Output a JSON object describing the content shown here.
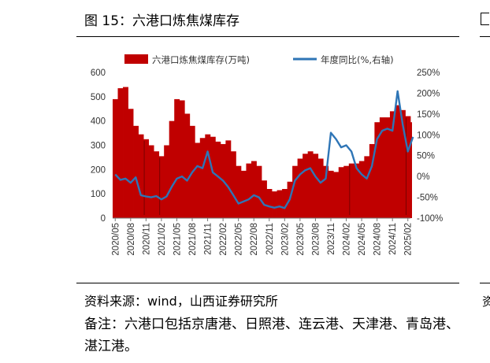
{
  "figure": {
    "title": "图 15：六港口炼焦煤库存",
    "source": "资料来源：wind，山西证券研究所",
    "note": "备注：六港口包括京唐港、日照港、连云港、天津港、青岛港、湛江港。",
    "right_stub_note": "资"
  },
  "chart_data": {
    "type": "bar+line",
    "legend_position": "top",
    "grid": false,
    "x_tick_labels": [
      "2020/05",
      "2020/08",
      "2020/11",
      "2021/02",
      "2021/05",
      "2021/08",
      "2021/11",
      "2022/02",
      "2022/05",
      "2022/08",
      "2022/11",
      "2023/02",
      "2023/05",
      "2023/08",
      "2023/11",
      "2024/02",
      "2024/05",
      "2024/08",
      "2024/11",
      "2025/02"
    ],
    "y_left": {
      "ticks": [
        "0",
        "100",
        "200",
        "300",
        "400",
        "500",
        "600"
      ],
      "range": [
        0,
        600
      ]
    },
    "y_right": {
      "ticks": [
        "-100%",
        "-50%",
        "0%",
        "50%",
        "100%",
        "150%",
        "200%",
        "250%"
      ],
      "range": [
        -100,
        250
      ]
    },
    "series": [
      {
        "name": "六港口炼焦煤库存(万吨)",
        "kind": "bar",
        "axis": "left",
        "color": "#c00000",
        "points": [
          [
            "2020/05",
            490
          ],
          [
            "2020/06",
            535
          ],
          [
            "2020/07",
            540
          ],
          [
            "2020/08",
            450
          ],
          [
            "2020/09",
            380
          ],
          [
            "2020/10",
            345
          ],
          [
            "2020/11",
            325
          ],
          [
            "2020/12",
            300
          ],
          [
            "2021/01",
            275
          ],
          [
            "2021/02",
            255
          ],
          [
            "2021/03",
            300
          ],
          [
            "2021/04",
            400
          ],
          [
            "2021/05",
            490
          ],
          [
            "2021/06",
            485
          ],
          [
            "2021/07",
            430
          ],
          [
            "2021/08",
            380
          ],
          [
            "2021/09",
            310
          ],
          [
            "2021/10",
            330
          ],
          [
            "2021/11",
            345
          ],
          [
            "2021/12",
            335
          ],
          [
            "2022/01",
            315
          ],
          [
            "2022/02",
            305
          ],
          [
            "2022/03",
            320
          ],
          [
            "2022/04",
            275
          ],
          [
            "2022/05",
            215
          ],
          [
            "2022/06",
            195
          ],
          [
            "2022/07",
            225
          ],
          [
            "2022/08",
            235
          ],
          [
            "2022/09",
            215
          ],
          [
            "2022/10",
            155
          ],
          [
            "2022/11",
            120
          ],
          [
            "2022/12",
            110
          ],
          [
            "2023/01",
            115
          ],
          [
            "2023/02",
            120
          ],
          [
            "2023/03",
            150
          ],
          [
            "2023/04",
            215
          ],
          [
            "2023/05",
            245
          ],
          [
            "2023/06",
            265
          ],
          [
            "2023/07",
            275
          ],
          [
            "2023/08",
            265
          ],
          [
            "2023/09",
            245
          ],
          [
            "2023/10",
            215
          ],
          [
            "2023/11",
            195
          ],
          [
            "2023/12",
            190
          ],
          [
            "2024/01",
            210
          ],
          [
            "2024/02",
            215
          ],
          [
            "2024/03",
            225
          ],
          [
            "2024/04",
            225
          ],
          [
            "2024/05",
            235
          ],
          [
            "2024/06",
            255
          ],
          [
            "2024/07",
            305
          ],
          [
            "2024/08",
            395
          ],
          [
            "2024/09",
            415
          ],
          [
            "2024/10",
            415
          ],
          [
            "2024/11",
            440
          ],
          [
            "2024/12",
            465
          ],
          [
            "2025/01",
            445
          ],
          [
            "2025/02",
            420
          ],
          [
            "2025/03",
            395
          ]
        ]
      },
      {
        "name": "年度同比(%,右轴)",
        "kind": "line",
        "axis": "right",
        "color": "#2e75b6",
        "points": [
          [
            "2020/05",
            5
          ],
          [
            "2020/06",
            -8
          ],
          [
            "2020/07",
            -5
          ],
          [
            "2020/08",
            -15
          ],
          [
            "2020/09",
            -2
          ],
          [
            "2020/10",
            -45
          ],
          [
            "2020/11",
            -48
          ],
          [
            "2020/12",
            -50
          ],
          [
            "2021/01",
            -47
          ],
          [
            "2021/02",
            -55
          ],
          [
            "2021/03",
            -48
          ],
          [
            "2021/04",
            -25
          ],
          [
            "2021/05",
            -5
          ],
          [
            "2021/06",
            0
          ],
          [
            "2021/07",
            -10
          ],
          [
            "2021/08",
            10
          ],
          [
            "2021/09",
            25
          ],
          [
            "2021/10",
            20
          ],
          [
            "2021/11",
            60
          ],
          [
            "2021/12",
            10
          ],
          [
            "2022/01",
            0
          ],
          [
            "2022/02",
            -10
          ],
          [
            "2022/03",
            -25
          ],
          [
            "2022/04",
            -45
          ],
          [
            "2022/05",
            -65
          ],
          [
            "2022/06",
            -60
          ],
          [
            "2022/07",
            -55
          ],
          [
            "2022/08",
            -45
          ],
          [
            "2022/09",
            -50
          ],
          [
            "2022/10",
            -68
          ],
          [
            "2022/11",
            -72
          ],
          [
            "2022/12",
            -75
          ],
          [
            "2023/01",
            -72
          ],
          [
            "2023/02",
            -76
          ],
          [
            "2023/03",
            -55
          ],
          [
            "2023/04",
            -10
          ],
          [
            "2023/05",
            5
          ],
          [
            "2023/06",
            15
          ],
          [
            "2023/07",
            20
          ],
          [
            "2023/08",
            0
          ],
          [
            "2023/09",
            -15
          ],
          [
            "2023/10",
            -5
          ],
          [
            "2023/11",
            105
          ],
          [
            "2023/12",
            90
          ],
          [
            "2024/01",
            70
          ],
          [
            "2024/02",
            75
          ],
          [
            "2024/03",
            60
          ],
          [
            "2024/04",
            20
          ],
          [
            "2024/05",
            5
          ],
          [
            "2024/06",
            -5
          ],
          [
            "2024/07",
            25
          ],
          [
            "2024/08",
            90
          ],
          [
            "2024/09",
            110
          ],
          [
            "2024/10",
            115
          ],
          [
            "2024/11",
            110
          ],
          [
            "2024/12",
            205
          ],
          [
            "2025/01",
            125
          ],
          [
            "2025/02",
            60
          ],
          [
            "2025/03",
            95
          ]
        ]
      }
    ]
  }
}
